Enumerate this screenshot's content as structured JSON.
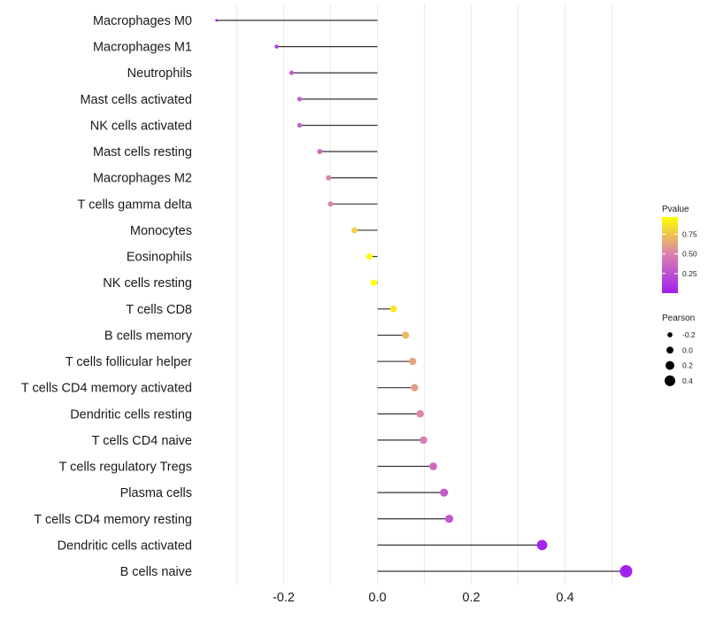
{
  "chart_data": {
    "type": "lollipop",
    "title": "",
    "xlabel": "",
    "ylabel": "",
    "xlim": [
      -0.36,
      0.56
    ],
    "x_ticks": [
      -0.2,
      0.0,
      0.2,
      0.4
    ],
    "x_tick_labels": [
      "-0.2",
      "0.0",
      "0.2",
      "0.4"
    ],
    "grid": true,
    "categories": [
      "Macrophages M0",
      "Macrophages M1",
      "Neutrophils",
      "Mast cells activated",
      "NK cells activated",
      "Mast cells resting",
      "Macrophages M2",
      "T cells gamma delta",
      "Monocytes",
      "Eosinophils",
      "NK cells resting",
      "T cells CD8",
      "B cells memory",
      "T cells follicular helper",
      "T cells CD4 memory activated",
      "Dendritic cells resting",
      "T cells CD4 naive",
      "T cells regulatory  Tregs ",
      "Plasma cells",
      "T cells CD4 memory resting",
      "Dendritic cells activated",
      "B cells naive"
    ],
    "pearson": [
      -0.343,
      -0.215,
      -0.183,
      -0.166,
      -0.166,
      -0.123,
      -0.104,
      -0.1,
      -0.049,
      -0.017,
      -0.008,
      0.034,
      0.06,
      0.075,
      0.079,
      0.091,
      0.098,
      0.119,
      0.142,
      0.153,
      0.351,
      0.53
    ],
    "pvalue": [
      0.02,
      0.18,
      0.28,
      0.33,
      0.33,
      0.38,
      0.5,
      0.52,
      0.8,
      0.96,
      0.99,
      0.88,
      0.7,
      0.62,
      0.6,
      0.52,
      0.48,
      0.38,
      0.3,
      0.28,
      0.03,
      0.01
    ],
    "legend": {
      "color": {
        "title": "Pvalue",
        "position": "right",
        "ticks": [
          0.25,
          0.5,
          0.75
        ],
        "tick_labels": [
          "0.25",
          "0.50",
          "0.75"
        ],
        "range": [
          0.0,
          0.97
        ],
        "low_color": "#A020F0",
        "mid_color": "#D97FB0",
        "high_color": "#FFFF00"
      },
      "size": {
        "title": "Pearson",
        "position": "right",
        "values": [
          -0.2,
          0.0,
          0.2,
          0.4
        ],
        "labels": [
          "-0.2",
          "0.0",
          "0.2",
          "0.4"
        ]
      }
    }
  }
}
